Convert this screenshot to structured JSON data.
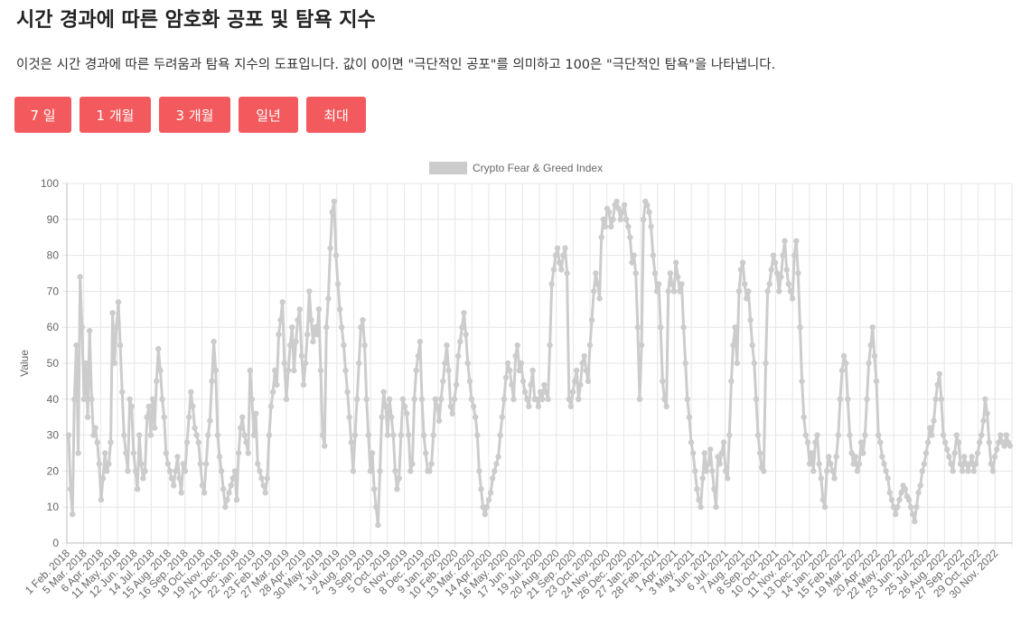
{
  "header": {
    "title": "시간 경과에 따른 암호화 공포 및 탐욕 지수",
    "description": "이것은 시간 경과에 따른 두려움과 탐욕 지수의 도표입니다. 값이 0이면 \"극단적인 공포\"를 의미하고 100은 \"극단적인 탐욕\"을 나타냅니다."
  },
  "range_buttons": [
    {
      "label": "7 일"
    },
    {
      "label": "1 개월"
    },
    {
      "label": "3 개월"
    },
    {
      "label": "일년"
    },
    {
      "label": "최대"
    }
  ],
  "colors": {
    "button": "#f25a5d",
    "series": "#cccccc",
    "grid": "#e6e6e6"
  },
  "chart_data": {
    "type": "line",
    "title": "",
    "xlabel": "",
    "ylabel": "Value",
    "ylim": [
      0,
      100
    ],
    "yticks": [
      0,
      10,
      20,
      30,
      40,
      50,
      60,
      70,
      80,
      90,
      100
    ],
    "grid": true,
    "legend": "top",
    "x_tick_labels": [
      "1 Feb. 2018",
      "5 Mar. 2018",
      "6 Apr. 2018",
      "11 May. 2018",
      "12 Jun. 2018",
      "14 Jul. 2018",
      "15 Aug. 2018",
      "16 Sep. 2018",
      "18 Oct. 2018",
      "19 Nov. 2018",
      "21 Dec. 2018",
      "22 Jan. 2019",
      "23 Feb. 2019",
      "27 Mar. 2019",
      "28 Apr. 2019",
      "30 May. 2019",
      "1 Jul. 2019",
      "2 Aug. 2019",
      "3 Sep. 2019",
      "5 Oct. 2019",
      "6 Nov. 2019",
      "8 Dec. 2019",
      "9 Jan. 2020",
      "10 Feb. 2020",
      "13 Mar. 2020",
      "14 Apr. 2020",
      "16 May. 2020",
      "17 Jun. 2020",
      "19 Jul. 2020",
      "20 Aug. 2020",
      "21 Sep. 2020",
      "23 Oct. 2020",
      "24 Nov. 2020",
      "26 Dec. 2020",
      "27 Jan. 2021",
      "28 Feb. 2021",
      "1 Apr. 2021",
      "3 May. 2021",
      "4 Jun. 2021",
      "6 Jul. 2021",
      "7 Aug. 2021",
      "8 Sep. 2021",
      "10 Oct. 2021",
      "11 Nov. 2021",
      "13 Dec. 2021",
      "14 Jan. 2022",
      "15 Feb. 2022",
      "19 Mar. 2022",
      "20 Apr. 2022",
      "22 May. 2022",
      "23 Jun. 2022",
      "25 Jul. 2022",
      "26 Aug. 2022",
      "27 Sep. 2022",
      "29 Oct. 2022",
      "30 Nov. 2022"
    ],
    "series": [
      {
        "name": "Crypto Fear & Greed Index",
        "color": "#cccccc",
        "values": [
          30,
          15,
          8,
          40,
          55,
          25,
          74,
          60,
          40,
          50,
          35,
          59,
          40,
          30,
          32,
          28,
          22,
          12,
          18,
          25,
          20,
          22,
          28,
          64,
          50,
          60,
          67,
          55,
          42,
          30,
          25,
          20,
          40,
          38,
          25,
          20,
          15,
          30,
          22,
          18,
          20,
          35,
          38,
          30,
          40,
          32,
          45,
          54,
          48,
          40,
          35,
          25,
          22,
          20,
          18,
          16,
          20,
          24,
          18,
          14,
          22,
          20,
          28,
          35,
          42,
          38,
          32,
          30,
          28,
          22,
          16,
          14,
          22,
          30,
          34,
          45,
          56,
          48,
          30,
          24,
          20,
          15,
          10,
          12,
          14,
          16,
          18,
          20,
          12,
          25,
          32,
          35,
          30,
          28,
          25,
          48,
          40,
          30,
          36,
          22,
          20,
          18,
          16,
          14,
          18,
          30,
          38,
          42,
          48,
          44,
          58,
          62,
          67,
          50,
          40,
          48,
          55,
          60,
          48,
          56,
          62,
          65,
          52,
          44,
          50,
          58,
          70,
          62,
          56,
          60,
          58,
          65,
          48,
          30,
          27,
          60,
          68,
          82,
          92,
          95,
          80,
          72,
          65,
          60,
          55,
          48,
          42,
          35,
          28,
          20,
          30,
          40,
          50,
          60,
          62,
          55,
          40,
          30,
          20,
          25,
          15,
          10,
          5,
          20,
          35,
          42,
          38,
          30,
          40,
          35,
          30,
          20,
          15,
          18,
          30,
          40,
          38,
          36,
          30,
          20,
          22,
          40,
          48,
          52,
          56,
          40,
          30,
          25,
          20,
          20,
          22,
          30,
          40,
          38,
          34,
          40,
          45,
          50,
          55,
          48,
          38,
          36,
          40,
          44,
          52,
          56,
          60,
          64,
          58,
          50,
          45,
          40,
          38,
          35,
          30,
          20,
          15,
          10,
          8,
          10,
          12,
          14,
          18,
          20,
          22,
          24,
          30,
          35,
          40,
          46,
          50,
          48,
          44,
          40,
          52,
          55,
          48,
          50,
          45,
          42,
          40,
          38,
          44,
          48,
          40,
          40,
          38,
          42,
          40,
          44,
          42,
          40,
          55,
          72,
          76,
          80,
          82,
          78,
          76,
          80,
          82,
          75,
          40,
          38,
          42,
          45,
          48,
          40,
          44,
          50,
          52,
          48,
          45,
          55,
          62,
          70,
          75,
          72,
          68,
          85,
          90,
          88,
          93,
          92,
          88,
          90,
          94,
          95,
          93,
          90,
          92,
          94,
          90,
          88,
          85,
          78,
          80,
          75,
          60,
          40,
          55,
          90,
          95,
          94,
          92,
          88,
          80,
          75,
          70,
          72,
          60,
          45,
          40,
          38,
          70,
          75,
          72,
          70,
          78,
          74,
          70,
          72,
          60,
          50,
          40,
          35,
          28,
          25,
          20,
          15,
          12,
          10,
          18,
          25,
          20,
          22,
          26,
          20,
          15,
          10,
          24,
          22,
          25,
          28,
          20,
          18,
          30,
          45,
          55,
          60,
          50,
          70,
          76,
          78,
          72,
          68,
          70,
          62,
          55,
          50,
          40,
          30,
          25,
          21,
          20,
          50,
          70,
          72,
          76,
          80,
          78,
          75,
          70,
          74,
          80,
          84,
          76,
          72,
          70,
          68,
          80,
          84,
          75,
          60,
          45,
          35,
          30,
          28,
          22,
          25,
          20,
          28,
          30,
          22,
          18,
          12,
          10,
          20,
          24,
          22,
          20,
          18,
          24,
          30,
          40,
          48,
          52,
          50,
          40,
          30,
          25,
          22,
          24,
          20,
          22,
          28,
          25,
          30,
          40,
          50,
          55,
          60,
          52,
          45,
          30,
          28,
          24,
          22,
          20,
          18,
          14,
          12,
          10,
          8,
          10,
          12,
          14,
          16,
          15,
          13,
          12,
          10,
          8,
          6,
          10,
          14,
          16,
          20,
          22,
          25,
          28,
          32,
          30,
          34,
          40,
          44,
          47,
          40,
          30,
          28,
          26,
          24,
          22,
          20,
          25,
          30,
          28,
          22,
          20,
          24,
          22,
          20,
          22,
          24,
          20,
          22,
          25,
          28,
          30,
          34,
          40,
          36,
          28,
          22,
          20,
          24,
          26,
          28,
          30,
          28,
          27,
          30,
          28,
          27
        ]
      }
    ]
  }
}
